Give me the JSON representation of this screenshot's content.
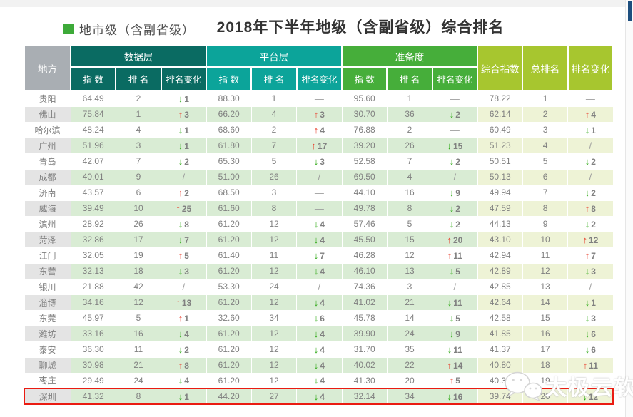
{
  "page": {
    "legend": "地市级（含副省级）",
    "title": "2018年下半年地级（含副省级）综合排名",
    "watermark": "太极云软"
  },
  "colors": {
    "legend_square": "#3daa39",
    "corner_header": "#a9aeb3",
    "summary_header": "#a7c62f",
    "arrow_up": "#e8402d",
    "arrow_down": "#2aa711",
    "highlight_border": "#ea1b12",
    "scrollbar_thumb": "#1d4e7e"
  },
  "table": {
    "corner_header": "地方",
    "groups": [
      {
        "label": "数据层",
        "color": "#0a6b62",
        "children": [
          "指 数",
          "排 名",
          "排名变化"
        ]
      },
      {
        "label": "平台层",
        "color": "#0ca49a",
        "children": [
          "指 数",
          "排 名",
          "排名变化"
        ]
      },
      {
        "label": "准备度",
        "color": "#46ae3a",
        "children": [
          "指 数",
          "排 名",
          "排名变化"
        ]
      }
    ],
    "summary_headers": [
      "综合指数",
      "总排名",
      "排名变化"
    ],
    "rows": [
      {
        "name": "贵阳",
        "highlight": false,
        "cells": [
          "64.49",
          "2",
          "↓1",
          "88.30",
          "1",
          "—",
          "95.60",
          "1",
          "—",
          "78.22",
          "1",
          "—"
        ]
      },
      {
        "name": "佛山",
        "highlight": false,
        "cells": [
          "75.84",
          "1",
          "↑3",
          "66.20",
          "4",
          "↑3",
          "30.70",
          "36",
          "↓2",
          "62.14",
          "2",
          "↑4"
        ]
      },
      {
        "name": "哈尔滨",
        "highlight": false,
        "cells": [
          "48.24",
          "4",
          "↓1",
          "68.60",
          "2",
          "↑4",
          "76.88",
          "2",
          "—",
          "60.49",
          "3",
          "↓1"
        ]
      },
      {
        "name": "广州",
        "highlight": false,
        "cells": [
          "51.96",
          "3",
          "↓1",
          "61.80",
          "7",
          "↑17",
          "39.20",
          "26",
          "↓15",
          "51.23",
          "4",
          "/"
        ]
      },
      {
        "name": "青岛",
        "highlight": false,
        "cells": [
          "42.07",
          "7",
          "↓2",
          "65.30",
          "5",
          "↓3",
          "52.58",
          "7",
          "↓2",
          "50.51",
          "5",
          "↓2"
        ]
      },
      {
        "name": "成都",
        "highlight": false,
        "cells": [
          "40.01",
          "9",
          "/",
          "51.00",
          "26",
          "/",
          "69.50",
          "4",
          "/",
          "50.13",
          "6",
          "/"
        ]
      },
      {
        "name": "济南",
        "highlight": false,
        "cells": [
          "43.57",
          "6",
          "↑2",
          "68.50",
          "3",
          "—",
          "44.10",
          "16",
          "↓9",
          "49.94",
          "7",
          "↓2"
        ]
      },
      {
        "name": "威海",
        "highlight": false,
        "cells": [
          "39.49",
          "10",
          "↑25",
          "61.60",
          "8",
          "—",
          "49.78",
          "8",
          "↓2",
          "47.59",
          "8",
          "↑8"
        ]
      },
      {
        "name": "滨州",
        "highlight": false,
        "cells": [
          "28.92",
          "26",
          "↓8",
          "61.20",
          "12",
          "↓4",
          "57.46",
          "5",
          "↓2",
          "44.13",
          "9",
          "↓2"
        ]
      },
      {
        "name": "菏泽",
        "highlight": false,
        "cells": [
          "32.86",
          "17",
          "↓7",
          "61.20",
          "12",
          "↓4",
          "45.50",
          "15",
          "↑20",
          "43.10",
          "10",
          "↑12"
        ]
      },
      {
        "name": "江门",
        "highlight": false,
        "cells": [
          "32.05",
          "19",
          "↑5",
          "61.40",
          "11",
          "↓7",
          "46.28",
          "12",
          "↑11",
          "42.94",
          "11",
          "↑7"
        ]
      },
      {
        "name": "东营",
        "highlight": false,
        "cells": [
          "32.13",
          "18",
          "↓3",
          "61.20",
          "12",
          "↓4",
          "46.10",
          "13",
          "↓5",
          "42.89",
          "12",
          "↓3"
        ]
      },
      {
        "name": "银川",
        "highlight": false,
        "cells": [
          "21.88",
          "42",
          "/",
          "53.30",
          "24",
          "/",
          "74.36",
          "3",
          "/",
          "42.85",
          "13",
          "/"
        ]
      },
      {
        "name": "淄博",
        "highlight": false,
        "cells": [
          "34.16",
          "12",
          "↑13",
          "61.20",
          "12",
          "↓4",
          "41.02",
          "21",
          "↓11",
          "42.64",
          "14",
          "↓1"
        ]
      },
      {
        "name": "东莞",
        "highlight": false,
        "cells": [
          "45.97",
          "5",
          "↑1",
          "32.60",
          "34",
          "↓6",
          "45.78",
          "14",
          "↓5",
          "42.58",
          "15",
          "↓3"
        ]
      },
      {
        "name": "潍坊",
        "highlight": false,
        "cells": [
          "33.16",
          "16",
          "↓4",
          "61.20",
          "12",
          "↓4",
          "39.90",
          "24",
          "↓9",
          "41.85",
          "16",
          "↓6"
        ]
      },
      {
        "name": "泰安",
        "highlight": false,
        "cells": [
          "36.30",
          "11",
          "↓2",
          "61.20",
          "12",
          "↓4",
          "31.70",
          "35",
          "↓11",
          "41.37",
          "17",
          "↓6"
        ]
      },
      {
        "name": "聊城",
        "highlight": false,
        "cells": [
          "30.98",
          "21",
          "↑8",
          "61.20",
          "12",
          "↓4",
          "40.02",
          "22",
          "↑14",
          "40.80",
          "18",
          "↑11"
        ]
      },
      {
        "name": "枣庄",
        "highlight": false,
        "cells": [
          "29.49",
          "24",
          "↓4",
          "61.20",
          "12",
          "↓4",
          "41.30",
          "20",
          "↑5",
          "40.37",
          "19",
          ""
        ]
      },
      {
        "name": "深圳",
        "highlight": true,
        "cells": [
          "41.32",
          "8",
          "↓1",
          "44.20",
          "27",
          "↓4",
          "32.14",
          "34",
          "↓16",
          "39.74",
          "20",
          "↓12"
        ]
      }
    ]
  }
}
